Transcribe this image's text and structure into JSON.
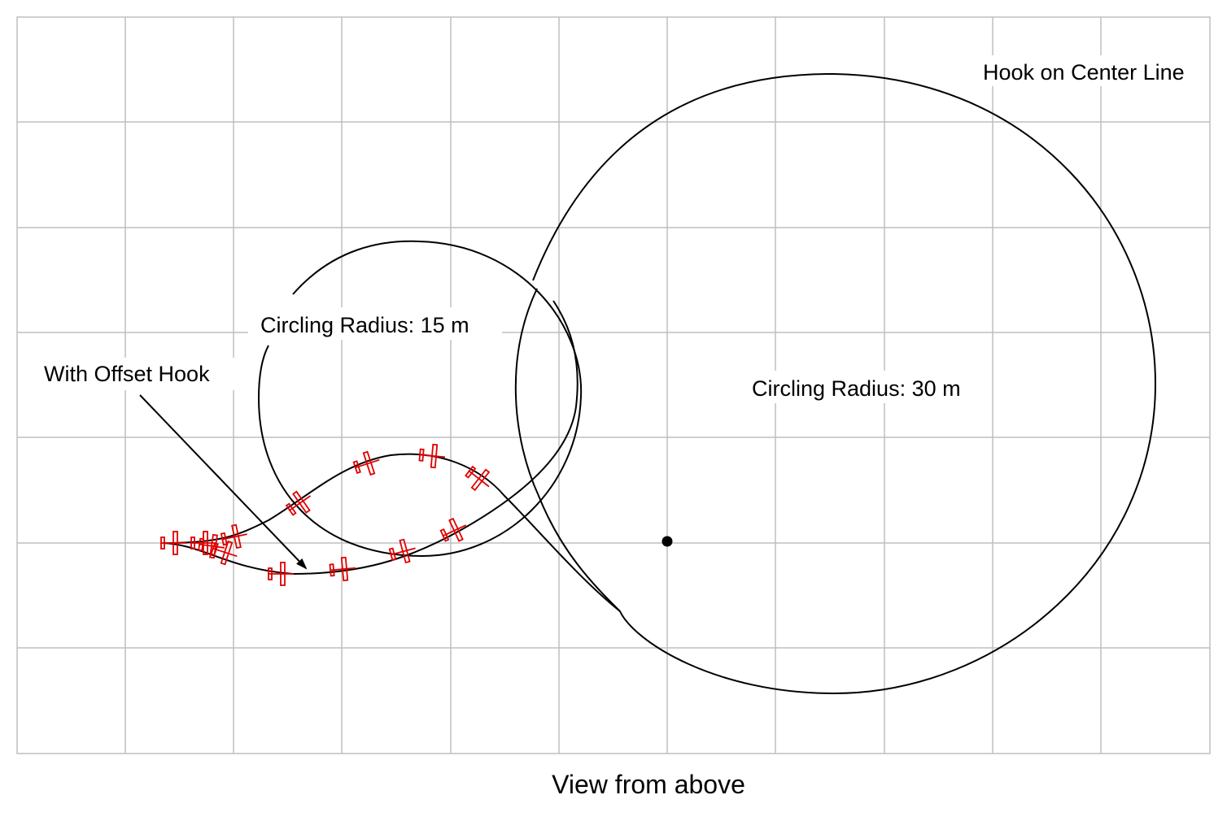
{
  "labels": {
    "hook_center": "Hook on Center Line",
    "radius_15": "Circling Radius: 15 m",
    "offset_hook": "With Offset Hook",
    "radius_30": "Circling Radius: 30 m"
  },
  "caption": "View from above",
  "colors": {
    "grid": "#bfbfbf",
    "path": "#000000",
    "aircraft": "#e00000",
    "background": "#ffffff"
  }
}
